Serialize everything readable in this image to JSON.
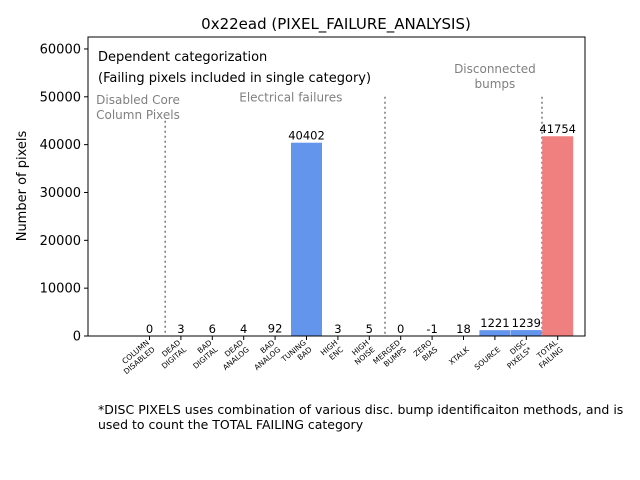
{
  "chart_data": {
    "type": "bar",
    "title": "0x22ead (PIXEL_FAILURE_ANALYSIS)",
    "ylabel": "Number of pixels",
    "xlabel": "",
    "ylim": [
      0,
      62500
    ],
    "yticks": [
      0,
      10000,
      20000,
      30000,
      40000,
      50000,
      60000
    ],
    "ytick_labels": [
      "0",
      "10000",
      "20000",
      "30000",
      "40000",
      "50000",
      "60000"
    ],
    "categories": [
      "COLUMN\nDISABLED",
      "DEAD\nDIGITAL",
      "BAD\nDIGITAL",
      "DEAD\nANALOG",
      "BAD\nANALOG",
      "TUNING\nBAD",
      "HIGH\nENC",
      "HIGH\nNOISE",
      "MERGED\nBUMPS",
      "ZERO\nBIAS",
      "XTALK",
      "SOURCE",
      "DISC\nPIXELS*",
      "TOTAL\nFAILING"
    ],
    "values": [
      0,
      3,
      6,
      4,
      92,
      40402,
      3,
      5,
      0,
      -1,
      18,
      1221,
      1239,
      41754
    ],
    "value_labels": [
      "0",
      "3",
      "6",
      "4",
      "92",
      "40402",
      "3",
      "5",
      "0",
      "-1",
      "18",
      "1221",
      "1239",
      "41754"
    ],
    "bar_colors": [
      "#6495ED",
      "#6495ED",
      "#6495ED",
      "#6495ED",
      "#6495ED",
      "#6495ED",
      "#6495ED",
      "#6495ED",
      "#6495ED",
      "#6495ED",
      "#6495ED",
      "#6495ED",
      "#6495ED",
      "#F08080"
    ],
    "separators": [
      {
        "after_index": 0,
        "top": 45000
      },
      {
        "after_index": 7,
        "top": 50000
      },
      {
        "after_index": 12,
        "top": 50000
      }
    ],
    "group_labels": [
      {
        "text": "Disabled Core\nColumn Pixels",
        "center_index": -0.5,
        "y": 48500
      },
      {
        "text": "Electrical failures",
        "center_index": 4.5,
        "y": 49000
      },
      {
        "text": "Disconnected\nbumps",
        "center_index": 11,
        "y": 55000
      }
    ],
    "annotation_lines": [
      "Dependent categorization",
      "(Failing pixels included in single category)"
    ],
    "footnote": "*DISC PIXELS uses combination of various disc. bump identificaiton methods, and is used to count the TOTAL FAILING category",
    "colors": {
      "bar": "#6495ED",
      "total": "#F08080",
      "group_text": "#808080",
      "separator": "#808080"
    }
  }
}
